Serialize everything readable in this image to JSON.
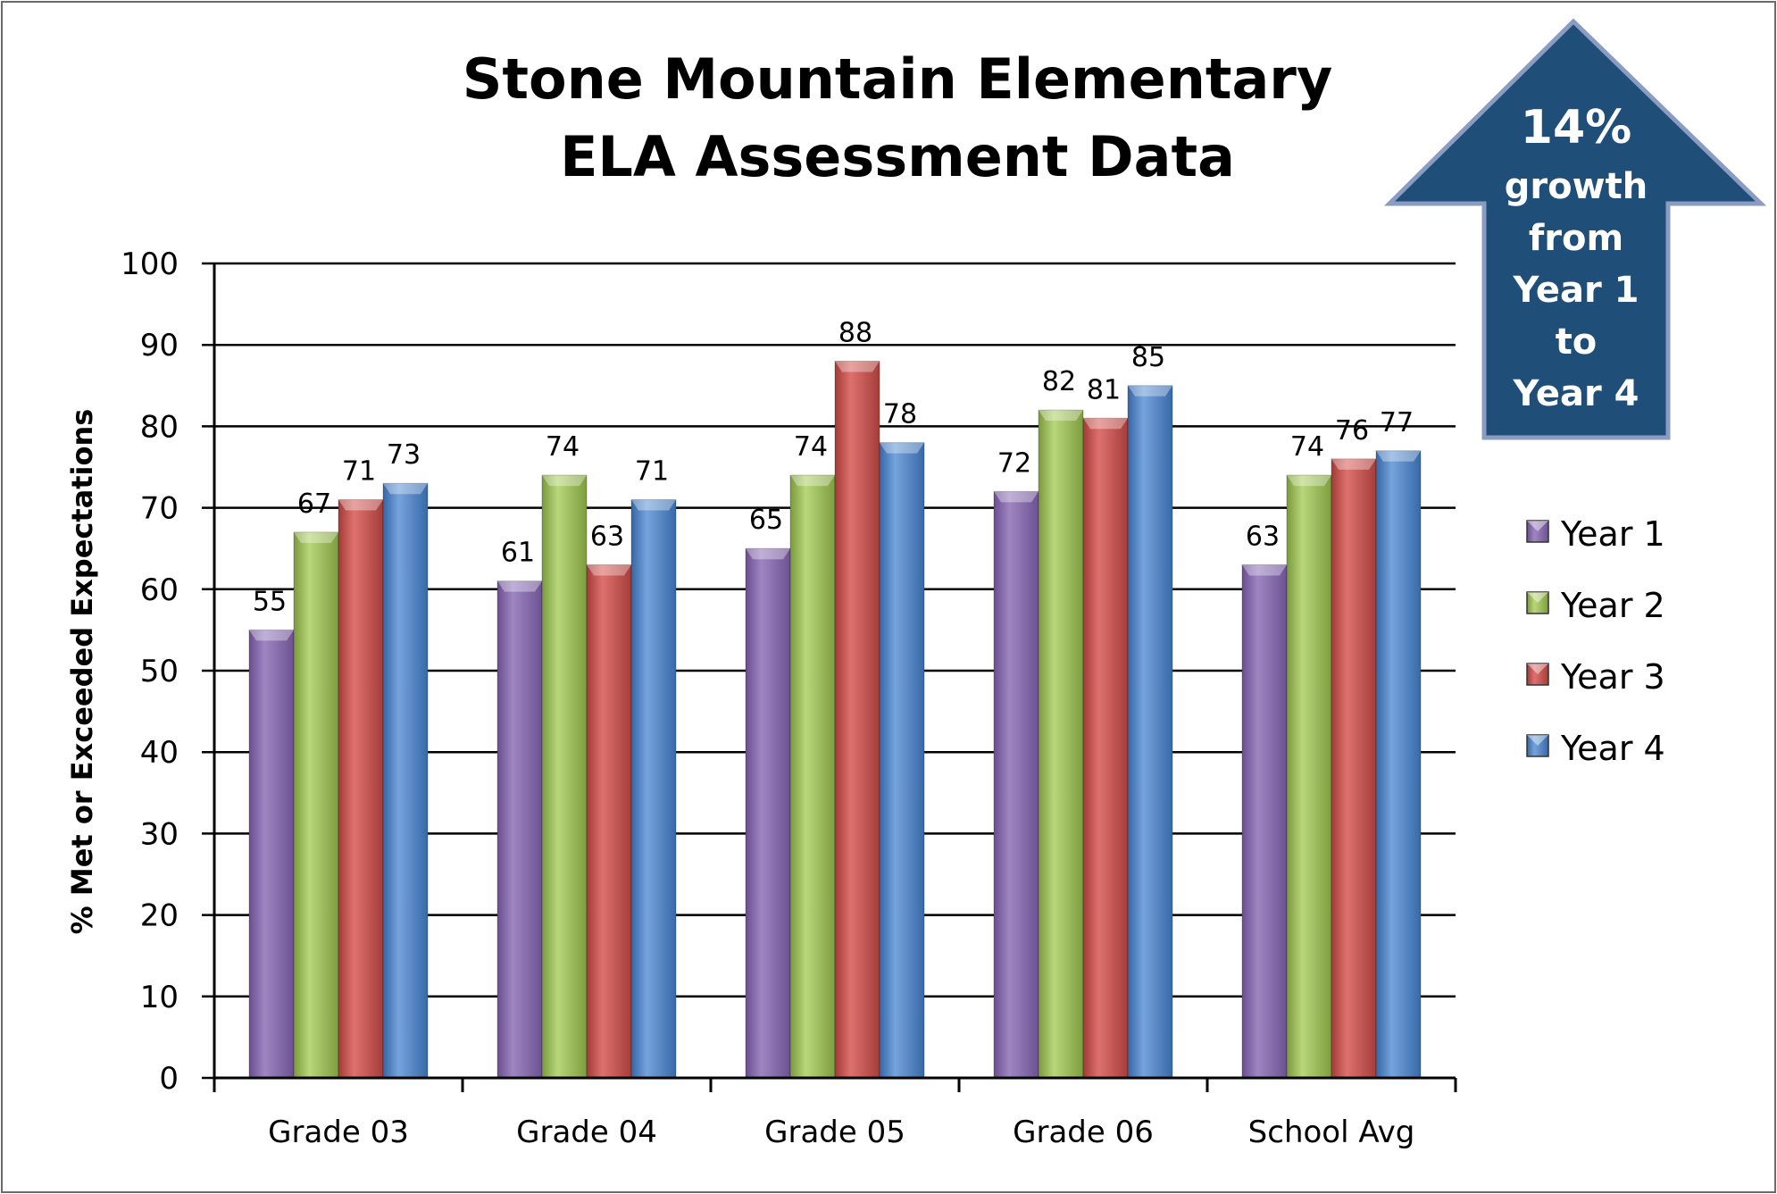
{
  "chart_data": {
    "type": "bar",
    "title": [
      "Stone Mountain Elementary",
      "ELA Assessment Data"
    ],
    "ylabel": "% Met or Exceeded Expectations",
    "xlabel": "",
    "ylim": [
      0,
      100
    ],
    "yticks": [
      0,
      10,
      20,
      30,
      40,
      50,
      60,
      70,
      80,
      90,
      100
    ],
    "grid": true,
    "legend_position": "right",
    "categories": [
      "Grade 03",
      "Grade 04",
      "Grade 05",
      "Grade 06",
      "School Avg"
    ],
    "series": [
      {
        "name": "Year 1",
        "color": "#8064a2",
        "values": [
          55,
          61,
          65,
          72,
          63
        ]
      },
      {
        "name": "Year 2",
        "color": "#9bbb59",
        "values": [
          67,
          74,
          74,
          82,
          74
        ]
      },
      {
        "name": "Year 3",
        "color": "#c0504d",
        "values": [
          71,
          63,
          88,
          81,
          76
        ]
      },
      {
        "name": "Year 4",
        "color": "#4f81bd",
        "values": [
          73,
          71,
          78,
          85,
          77
        ]
      }
    ]
  },
  "callout": {
    "lines": [
      "14%",
      "growth",
      "from",
      "Year 1",
      "to",
      "Year 4"
    ],
    "fill_color": "#1f4e79",
    "border_color": "#8a9cc2"
  }
}
